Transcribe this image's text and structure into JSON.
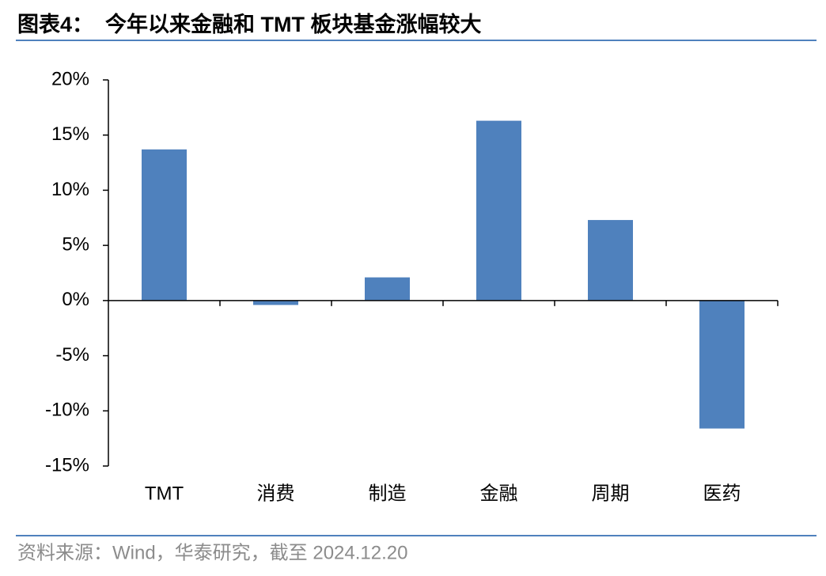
{
  "chart_data": {
    "type": "bar",
    "title": "图表4：  今年以来金融和 TMT 板块基金涨幅较大",
    "source": "资料来源：Wind，华泰研究，截至 2024.12.20",
    "categories": [
      "TMT",
      "消费",
      "制造",
      "金融",
      "周期",
      "医药"
    ],
    "values": [
      13.7,
      -0.4,
      2.1,
      16.3,
      7.3,
      -11.6
    ],
    "color": "#4f81bd",
    "ylim": [
      -15,
      20
    ],
    "yticks": [
      {
        "value": -15,
        "label": "-15%"
      },
      {
        "value": -10,
        "label": "-10%"
      },
      {
        "value": -5,
        "label": "-5%"
      },
      {
        "value": 0,
        "label": "0%"
      },
      {
        "value": 5,
        "label": "5%"
      },
      {
        "value": 10,
        "label": "10%"
      },
      {
        "value": 15,
        "label": "15%"
      },
      {
        "value": 20,
        "label": "20%"
      }
    ],
    "grid": false
  }
}
